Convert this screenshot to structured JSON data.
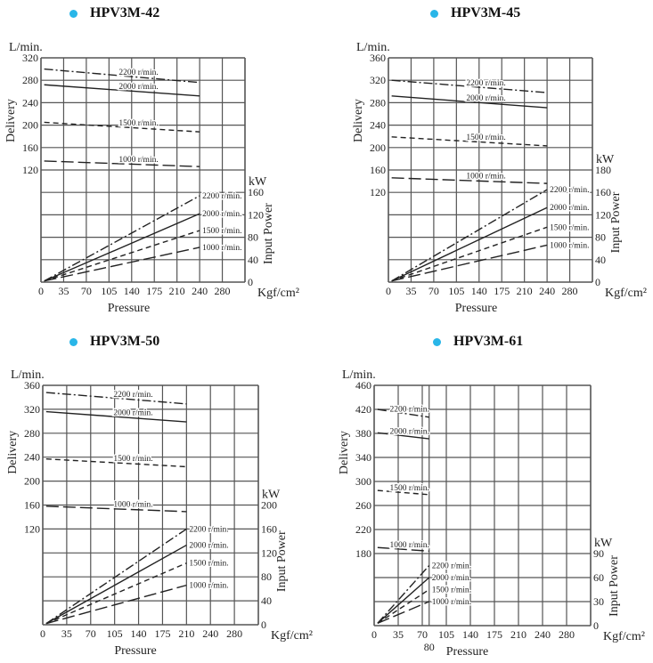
{
  "colors": {
    "bullet": "#29b6e8",
    "grid": "#555555",
    "line": "#222222"
  },
  "chart_data": [
    {
      "type": "line",
      "title": "HPV3M-42",
      "delivery_unit": "L/min.",
      "delivery_label": "Delivery",
      "power_unit": "kW",
      "power_label": "Input Power",
      "pressure_unit": "Kgf/cm²",
      "pressure_label": "Pressure",
      "x_ticks": [
        0,
        35,
        70,
        105,
        140,
        175,
        210,
        240,
        280
      ],
      "extra_x_tick": null,
      "ylim": [
        -80,
        320
      ],
      "y_ticks": [
        320,
        280,
        240,
        200,
        160,
        120
      ],
      "power_ticks": [
        0,
        40,
        80,
        120,
        160
      ],
      "grid": true,
      "delivery": [
        {
          "label": "2200 r/min.",
          "style": "dashdot",
          "points": [
            [
              5,
              300
            ],
            [
              240,
              276
            ]
          ]
        },
        {
          "label": "2000 r/min.",
          "style": "solid",
          "points": [
            [
              5,
              272
            ],
            [
              240,
              252
            ]
          ]
        },
        {
          "label": "1500 r/min.",
          "style": "dashed",
          "points": [
            [
              5,
              205
            ],
            [
              240,
              188
            ]
          ]
        },
        {
          "label": "1000 r/min.",
          "style": "longdash",
          "points": [
            [
              5,
              136
            ],
            [
              240,
              126
            ]
          ]
        }
      ],
      "power": [
        {
          "label": "2200 r/min.",
          "style": "dashdot",
          "points": [
            [
              5,
              2
            ],
            [
              240,
              154
            ]
          ]
        },
        {
          "label": "2000 r/min.",
          "style": "solid",
          "points": [
            [
              5,
              2
            ],
            [
              240,
              122
            ]
          ]
        },
        {
          "label": "1500 r/min.",
          "style": "dashed",
          "points": [
            [
              5,
              2
            ],
            [
              240,
              92
            ]
          ]
        },
        {
          "label": "1000 r/min.",
          "style": "longdash",
          "points": [
            [
              5,
              2
            ],
            [
              240,
              62
            ]
          ]
        }
      ]
    },
    {
      "type": "line",
      "title": "HPV3M-45",
      "delivery_unit": "L/min.",
      "delivery_label": "Delivery",
      "power_unit": "kW",
      "power_label": "Input Power",
      "pressure_unit": "Kgf/cm²",
      "pressure_label": "Pressure",
      "x_ticks": [
        0,
        35,
        70,
        105,
        140,
        175,
        210,
        240,
        280
      ],
      "extra_x_tick": null,
      "ylim": [
        -40,
        360
      ],
      "y_ticks": [
        360,
        320,
        280,
        240,
        200,
        160,
        120
      ],
      "power_ticks": [
        0,
        40,
        80,
        120,
        160,
        180
      ],
      "grid": true,
      "delivery": [
        {
          "label": "2200 r/min.",
          "style": "dashdot",
          "points": [
            [
              5,
              320
            ],
            [
              240,
              298
            ]
          ]
        },
        {
          "label": "2000 r/min.",
          "style": "solid",
          "points": [
            [
              5,
              292
            ],
            [
              240,
              271
            ]
          ]
        },
        {
          "label": "1500 r/min.",
          "style": "dashed",
          "points": [
            [
              5,
              219
            ],
            [
              240,
              203
            ]
          ]
        },
        {
          "label": "1000 r/min.",
          "style": "longdash",
          "points": [
            [
              5,
              146
            ],
            [
              240,
              136
            ]
          ]
        }
      ],
      "power": [
        {
          "label": "2200 r/min.",
          "style": "dashdot",
          "points": [
            [
              5,
              2
            ],
            [
              240,
              165
            ]
          ]
        },
        {
          "label": "2000 r/min.",
          "style": "solid",
          "points": [
            [
              5,
              2
            ],
            [
              240,
              133
            ]
          ]
        },
        {
          "label": "1500 r/min.",
          "style": "dashed",
          "points": [
            [
              5,
              2
            ],
            [
              240,
              98
            ]
          ]
        },
        {
          "label": "1000 r/min.",
          "style": "longdash",
          "points": [
            [
              5,
              2
            ],
            [
              240,
              66
            ]
          ]
        }
      ]
    },
    {
      "type": "line",
      "title": "HPV3M-50",
      "delivery_unit": "L/min.",
      "delivery_label": "Delivery",
      "power_unit": "kW",
      "power_label": "Input Power",
      "pressure_unit": "Kgf/cm²",
      "pressure_label": "Pressure",
      "x_ticks": [
        0,
        35,
        70,
        105,
        140,
        175,
        210,
        240,
        280
      ],
      "extra_x_tick": null,
      "ylim": [
        -40,
        360
      ],
      "y_ticks": [
        360,
        320,
        280,
        240,
        200,
        160,
        120
      ],
      "power_ticks": [
        0,
        40,
        80,
        120,
        160,
        200
      ],
      "grid": true,
      "delivery": [
        {
          "label": "2200 r/min.",
          "style": "dashdot",
          "points": [
            [
              5,
              348
            ],
            [
              210,
              329
            ]
          ]
        },
        {
          "label": "2000 r/min.",
          "style": "solid",
          "points": [
            [
              5,
              316
            ],
            [
              210,
              299
            ]
          ]
        },
        {
          "label": "1500 r/min.",
          "style": "dashed",
          "points": [
            [
              5,
              237
            ],
            [
              210,
              224
            ]
          ]
        },
        {
          "label": "1000 r/min.",
          "style": "longdash",
          "points": [
            [
              5,
              158
            ],
            [
              210,
              149
            ]
          ]
        }
      ],
      "power": [
        {
          "label": "2200 r/min.",
          "style": "dashdot",
          "points": [
            [
              5,
              2
            ],
            [
              210,
              160
            ]
          ]
        },
        {
          "label": "2000 r/min.",
          "style": "solid",
          "points": [
            [
              5,
              2
            ],
            [
              210,
              133
            ]
          ]
        },
        {
          "label": "1500 r/min.",
          "style": "dashed",
          "points": [
            [
              5,
              2
            ],
            [
              210,
              103
            ]
          ]
        },
        {
          "label": "1000 r/min.",
          "style": "longdash",
          "points": [
            [
              5,
              2
            ],
            [
              210,
              66
            ]
          ]
        }
      ]
    },
    {
      "type": "line",
      "title": "HPV3M-61",
      "delivery_unit": "L/min.",
      "delivery_label": "Delivery",
      "power_unit": "kW",
      "power_label": "Input Power",
      "pressure_unit": "Kgf/cm²",
      "pressure_label": "Pressure",
      "x_ticks": [
        0,
        35,
        70,
        105,
        140,
        175,
        210,
        240,
        280
      ],
      "extra_x_tick": 80,
      "ylim": [
        60,
        460
      ],
      "y_ticks": [
        460,
        420,
        380,
        340,
        300,
        260,
        220,
        180
      ],
      "power_ticks": [
        0,
        30,
        60,
        90
      ],
      "grid": true,
      "delivery": [
        {
          "label": "2200 r/min.",
          "style": "dashdot",
          "points": [
            [
              5,
              420
            ],
            [
              80,
              407
            ]
          ]
        },
        {
          "label": "2000 r/min.",
          "style": "solid",
          "points": [
            [
              5,
              381
            ],
            [
              80,
              371
            ]
          ]
        },
        {
          "label": "1500 r/min.",
          "style": "dashed",
          "points": [
            [
              5,
              285
            ],
            [
              80,
              278
            ]
          ]
        },
        {
          "label": "1000 r/min.",
          "style": "longdash",
          "points": [
            [
              5,
              190
            ],
            [
              80,
              184
            ]
          ]
        }
      ],
      "power": [
        {
          "label": "2200 r/min.",
          "style": "dashdot",
          "points": [
            [
              5,
              3
            ],
            [
              80,
              75
            ]
          ]
        },
        {
          "label": "2000 r/min.",
          "style": "solid",
          "points": [
            [
              5,
              3
            ],
            [
              80,
              60
            ]
          ]
        },
        {
          "label": "1500 r/min.",
          "style": "dashed",
          "points": [
            [
              5,
              3
            ],
            [
              80,
              45
            ]
          ]
        },
        {
          "label": "1000 r/min.",
          "style": "longdash",
          "points": [
            [
              5,
              3
            ],
            [
              80,
              30
            ]
          ]
        }
      ]
    }
  ]
}
